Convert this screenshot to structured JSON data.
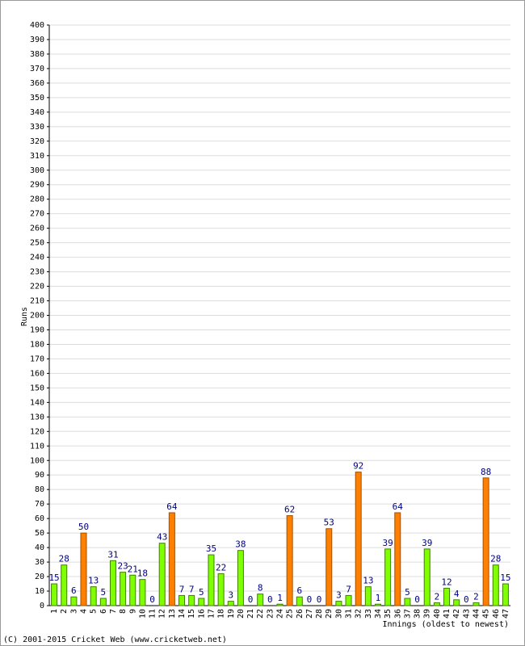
{
  "chart_data": {
    "type": "bar",
    "x_label": "Innings (oldest to newest)",
    "y_label": "Runs",
    "footer": "(C) 2001-2015 Cricket Web (www.cricketweb.net)",
    "categories": [
      "1",
      "2",
      "3",
      "4",
      "5",
      "6",
      "7",
      "8",
      "9",
      "10",
      "11",
      "12",
      "13",
      "14",
      "15",
      "16",
      "17",
      "18",
      "19",
      "20",
      "21",
      "22",
      "23",
      "24",
      "25",
      "26",
      "27",
      "28",
      "29",
      "30",
      "31",
      "32",
      "33",
      "34",
      "35",
      "36",
      "37",
      "38",
      "39",
      "40",
      "41",
      "42",
      "43",
      "44",
      "45",
      "46",
      "47"
    ],
    "values": [
      15,
      28,
      6,
      50,
      13,
      5,
      31,
      23,
      21,
      18,
      0,
      43,
      64,
      7,
      7,
      5,
      35,
      22,
      3,
      38,
      0,
      8,
      0,
      1,
      62,
      6,
      0,
      0,
      53,
      3,
      7,
      92,
      13,
      1,
      39,
      64,
      5,
      0,
      39,
      2,
      12,
      4,
      0,
      2,
      88,
      28,
      15
    ],
    "colors": [
      "#80ff00",
      "#80ff00",
      "#80ff00",
      "#ff8000",
      "#80ff00",
      "#80ff00",
      "#80ff00",
      "#80ff00",
      "#80ff00",
      "#80ff00",
      "#80ff00",
      "#80ff00",
      "#ff8000",
      "#80ff00",
      "#80ff00",
      "#80ff00",
      "#80ff00",
      "#80ff00",
      "#80ff00",
      "#80ff00",
      "#80ff00",
      "#80ff00",
      "#80ff00",
      "#80ff00",
      "#ff8000",
      "#80ff00",
      "#80ff00",
      "#80ff00",
      "#ff8000",
      "#80ff00",
      "#80ff00",
      "#ff8000",
      "#80ff00",
      "#80ff00",
      "#80ff00",
      "#ff8000",
      "#80ff00",
      "#80ff00",
      "#80ff00",
      "#80ff00",
      "#80ff00",
      "#80ff00",
      "#80ff00",
      "#80ff00",
      "#ff8000",
      "#80ff00",
      "#80ff00"
    ],
    "ylim": [
      0,
      400
    ],
    "yticks": [
      0,
      10,
      20,
      30,
      40,
      50,
      60,
      70,
      80,
      90,
      100,
      110,
      120,
      130,
      140,
      150,
      160,
      170,
      180,
      190,
      200,
      210,
      220,
      230,
      240,
      250,
      260,
      270,
      280,
      290,
      300,
      310,
      320,
      330,
      340,
      350,
      360,
      370,
      380,
      390,
      400
    ],
    "grid": true
  }
}
